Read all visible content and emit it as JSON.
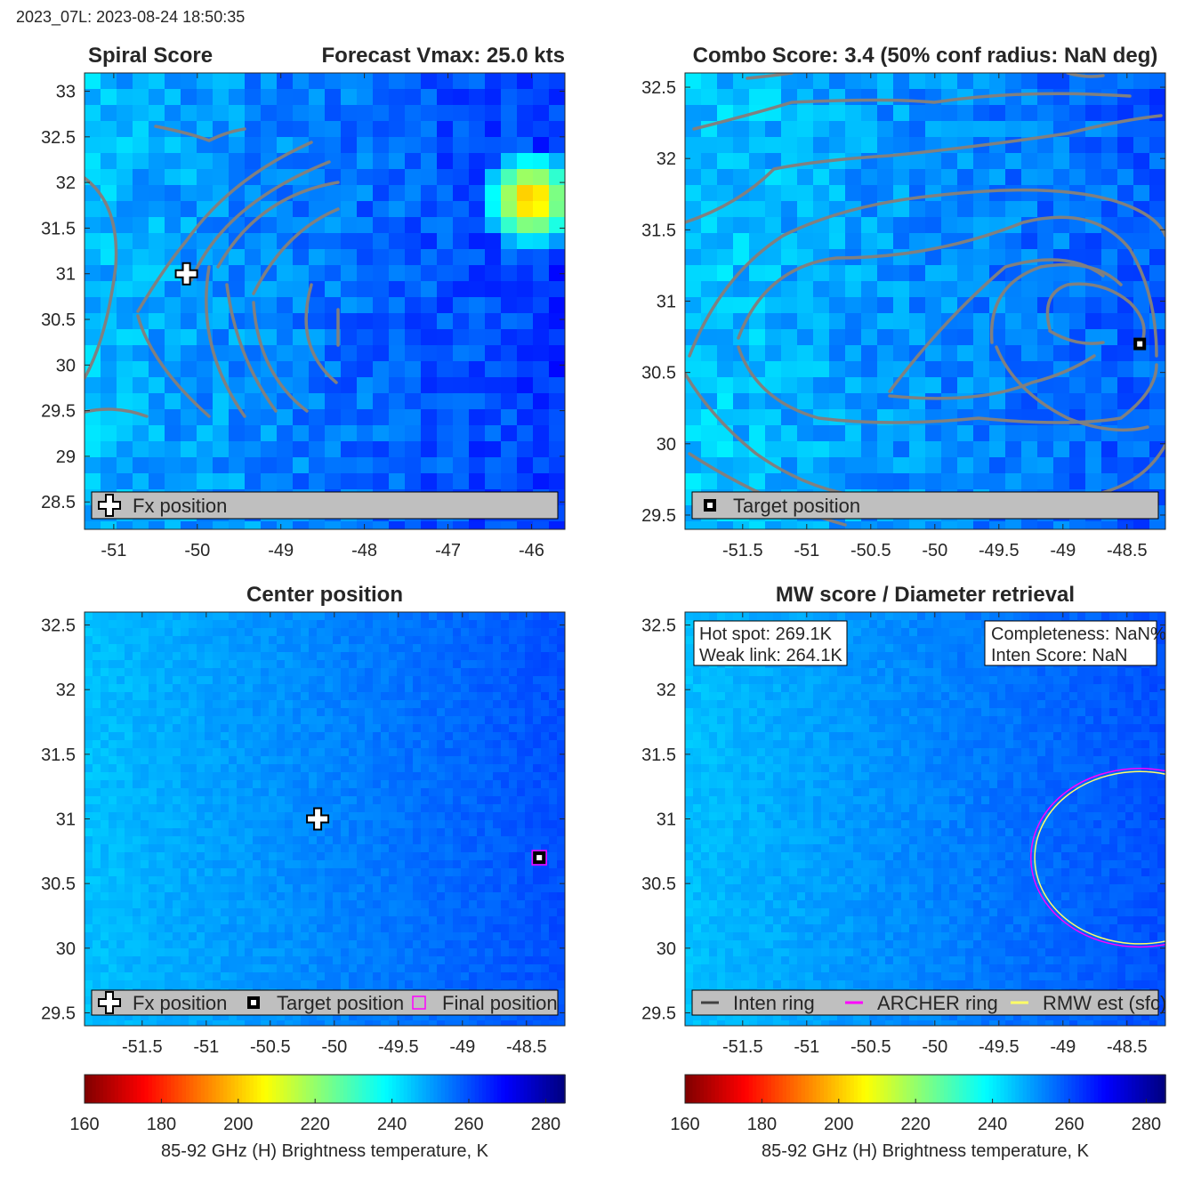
{
  "header": {
    "stamp": "2023_07L: 2023-08-24 18:50:35"
  },
  "colors": {
    "contour": "#808080",
    "frame": "#262626",
    "legend_bg": "#bfbfbf",
    "archer": "#ff00ff",
    "rmw": "#ffff66",
    "inten": "#404040"
  },
  "colorbar": {
    "label": "85-92 GHz (H) Brightness temperature, K",
    "ticks": [
      "160",
      "180",
      "200",
      "220",
      "240",
      "260",
      "280"
    ],
    "range": [
      160,
      285
    ]
  },
  "panels": [
    {
      "id": "spiral",
      "title_left": "Spiral Score",
      "title_right": "Forecast Vmax: 25.0 kts",
      "xlim": [
        -51.35,
        -45.6
      ],
      "ylim": [
        28.2,
        33.2
      ],
      "xticks": [
        "-51",
        "-50",
        "-49",
        "-48",
        "-47",
        "-46"
      ],
      "yticks": [
        "28.5",
        "29",
        "29.5",
        "30",
        "30.5",
        "31",
        "31.5",
        "32",
        "32.5",
        "33"
      ],
      "field": {
        "base": 255,
        "trend": 12,
        "hot_spot_center": [
          -46.1,
          31.9
        ],
        "hot_spot_k": 190
      },
      "markers": [
        {
          "kind": "fx",
          "lon": -50.13,
          "lat": 31.0
        }
      ],
      "legend": [
        "Fx position"
      ]
    },
    {
      "id": "combo",
      "title": "Combo Score: 3.4  (50% conf radius: NaN deg)",
      "xlim": [
        -51.95,
        -48.2
      ],
      "ylim": [
        29.4,
        32.6
      ],
      "xticks": [
        "-51.5",
        "-51",
        "-50.5",
        "-50",
        "-49.5",
        "-49",
        "-48.5"
      ],
      "yticks": [
        "29.5",
        "30",
        "30.5",
        "31",
        "31.5",
        "32",
        "32.5"
      ],
      "field": {
        "base": 252,
        "trend": 10
      },
      "markers": [
        {
          "kind": "target",
          "lon": -48.4,
          "lat": 30.7
        }
      ],
      "legend": [
        "Target position"
      ]
    },
    {
      "id": "center",
      "title": "Center position",
      "xlim": [
        -51.95,
        -48.2
      ],
      "ylim": [
        29.4,
        32.6
      ],
      "xticks": [
        "-51.5",
        "-51",
        "-50.5",
        "-50",
        "-49.5",
        "-49",
        "-48.5"
      ],
      "yticks": [
        "29.5",
        "30",
        "30.5",
        "31",
        "31.5",
        "32",
        "32.5"
      ],
      "field": {
        "base": 253,
        "trend": 10
      },
      "markers": [
        {
          "kind": "fx",
          "lon": -50.13,
          "lat": 31.0
        },
        {
          "kind": "target",
          "lon": -48.4,
          "lat": 30.7
        }
      ],
      "legend": [
        "Fx position",
        "Target position",
        "Final position"
      ]
    },
    {
      "id": "mw",
      "title": "MW score / Diameter retrieval",
      "xlim": [
        -51.95,
        -48.2
      ],
      "ylim": [
        29.4,
        32.6
      ],
      "xticks": [
        "-51.5",
        "-51",
        "-50.5",
        "-50",
        "-49.5",
        "-49",
        "-48.5"
      ],
      "yticks": [
        "29.5",
        "30",
        "30.5",
        "31",
        "31.5",
        "32",
        "32.5"
      ],
      "field": {
        "base": 253,
        "trend": 10
      },
      "annotation_left": [
        "Hot spot: 269.1K",
        "Weak link: 264.1K"
      ],
      "annotation_right": [
        "Completeness: NaN%",
        "Inten Score: NaN"
      ],
      "rings": {
        "center": [
          -48.4,
          30.7
        ],
        "archer_radius_deg": 0.85,
        "rmw_radius_deg": 0.82
      },
      "legend": [
        "Inten ring",
        "ARCHER ring",
        "RMW est (sfc)"
      ]
    }
  ]
}
